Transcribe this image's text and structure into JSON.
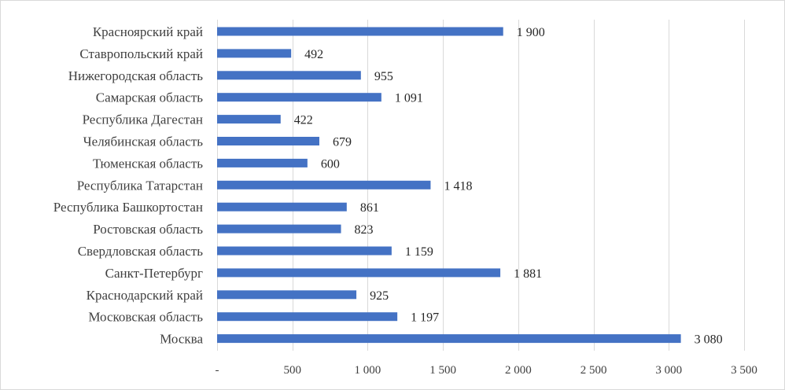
{
  "chart_data": {
    "type": "bar",
    "orientation": "horizontal",
    "categories": [
      "Красноярский край",
      "Ставропольский край",
      "Нижегородская область",
      "Самарская область",
      "Республика Дагестан",
      "Челябинская область",
      "Тюменская область",
      "Республика Татарстан",
      "Республика Башкортостан",
      "Ростовская область",
      "Свердловская область",
      "Санкт-Петербург",
      "Краснодарский край",
      "Московская область",
      "Москва"
    ],
    "values": [
      1900,
      492,
      955,
      1091,
      422,
      679,
      600,
      1418,
      861,
      823,
      1159,
      1881,
      925,
      1197,
      3080
    ],
    "data_labels": [
      "1 900",
      "492",
      "955",
      "1 091",
      "422",
      "679",
      "600",
      "1 418",
      "861",
      "823",
      "1 159",
      "1 881",
      "925",
      "1 197",
      "3 080"
    ],
    "x_ticks": [
      0,
      500,
      1000,
      1500,
      2000,
      2500,
      3000,
      3500
    ],
    "x_tick_labels": [
      "-",
      "500",
      "1 000",
      "1 500",
      "2 000",
      "2 500",
      "3 000",
      "3 500"
    ],
    "xlim": [
      0,
      3500
    ],
    "grid": true,
    "legend": "none",
    "bar_color": "#4472c4",
    "title": "",
    "xlabel": "",
    "ylabel": ""
  }
}
